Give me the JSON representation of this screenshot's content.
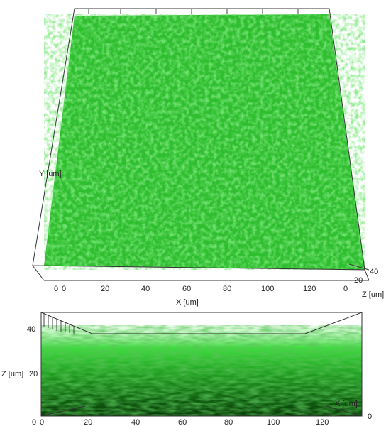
{
  "top_view": {
    "axis_labels": {
      "y": "Y [um]",
      "x": "X [um]",
      "z": "Z [um]"
    },
    "x_ticks": [
      "0",
      "20",
      "40",
      "60",
      "80",
      "100",
      "120"
    ],
    "x_start": "0",
    "z_ticks": [
      "0",
      "20",
      "40"
    ]
  },
  "bottom_view": {
    "axis_labels": {
      "z": "Z [um]",
      "x": "X [um]"
    },
    "z_ticks": [
      "40",
      "20"
    ],
    "x_ticks": [
      "0",
      "20",
      "40",
      "60",
      "80",
      "100",
      "120"
    ],
    "x_start": "0",
    "y_tick": "0"
  },
  "colors": {
    "biofilm_bright": "#3ddc3d",
    "biofilm_mid": "#22a822",
    "biofilm_dark": "#0b4a0b",
    "frame": "#333333"
  }
}
